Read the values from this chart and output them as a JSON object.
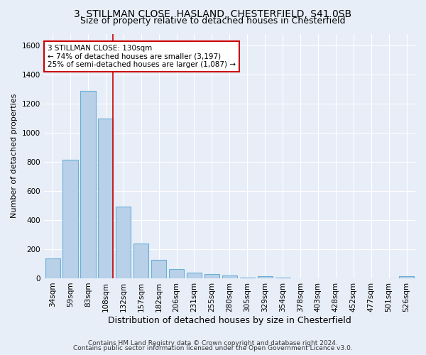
{
  "title1": "3, STILLMAN CLOSE, HASLAND, CHESTERFIELD, S41 0SB",
  "title2": "Size of property relative to detached houses in Chesterfield",
  "xlabel": "Distribution of detached houses by size in Chesterfield",
  "ylabel": "Number of detached properties",
  "categories": [
    "34sqm",
    "59sqm",
    "83sqm",
    "108sqm",
    "132sqm",
    "157sqm",
    "182sqm",
    "206sqm",
    "231sqm",
    "255sqm",
    "280sqm",
    "305sqm",
    "329sqm",
    "354sqm",
    "378sqm",
    "403sqm",
    "428sqm",
    "452sqm",
    "477sqm",
    "501sqm",
    "526sqm"
  ],
  "values": [
    138,
    815,
    1285,
    1095,
    490,
    240,
    128,
    65,
    38,
    27,
    18,
    5,
    12,
    3,
    2,
    2,
    1,
    1,
    0,
    0,
    12
  ],
  "bar_color": "#b8d0e8",
  "bar_edge_color": "#6baed6",
  "vline_color": "#cc0000",
  "annotation_line1": "3 STILLMAN CLOSE: 130sqm",
  "annotation_line2": "← 74% of detached houses are smaller (3,197)",
  "annotation_line3": "25% of semi-detached houses are larger (1,087) →",
  "annotation_box_color": "white",
  "annotation_box_edge_color": "#cc0000",
  "ylim": [
    0,
    1680
  ],
  "yticks": [
    0,
    200,
    400,
    600,
    800,
    1000,
    1200,
    1400,
    1600
  ],
  "footer1": "Contains HM Land Registry data © Crown copyright and database right 2024.",
  "footer2": "Contains public sector information licensed under the Open Government Licence v3.0.",
  "bg_color": "#e8eef8",
  "plot_bg_color": "#e8eef8",
  "grid_color": "#ffffff",
  "title1_fontsize": 10,
  "title2_fontsize": 9,
  "ylabel_fontsize": 8,
  "xlabel_fontsize": 9,
  "annotation_fontsize": 7.5,
  "footer_fontsize": 6.5,
  "tick_fontsize": 7.5
}
